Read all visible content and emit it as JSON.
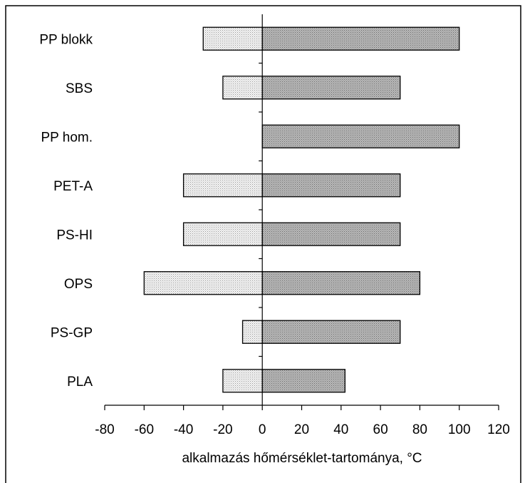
{
  "chart_data": {
    "type": "bar",
    "orientation": "horizontal",
    "title": "",
    "xlabel": "alkalmazás hőmérséklet-tartománya, °C",
    "ylabel": "",
    "xlim": [
      -80,
      120
    ],
    "xticks": [
      "-80",
      "-60",
      "-40",
      "-20",
      "0",
      "20",
      "40",
      "60",
      "80",
      "100",
      "120"
    ],
    "xtick_values": [
      -80,
      -60,
      -40,
      -20,
      0,
      20,
      40,
      60,
      80,
      100,
      120
    ],
    "grid": false,
    "categories": [
      "PP blokk",
      "SBS",
      "PP hom.",
      "PET-A",
      "PS-HI",
      "OPS",
      "PS-GP",
      "PLA"
    ],
    "series": [
      {
        "values": [
          -30,
          -20,
          0,
          -40,
          -40,
          -60,
          -10,
          -20
        ],
        "color": "#e8e8e8"
      },
      {
        "values": [
          100,
          70,
          100,
          70,
          70,
          80,
          70,
          42
        ],
        "color": "#a9a9a9"
      }
    ]
  }
}
